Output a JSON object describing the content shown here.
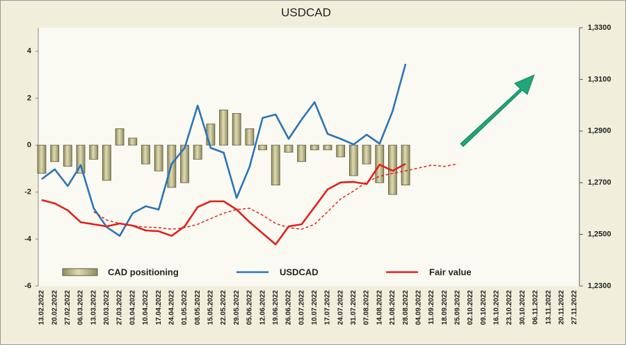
{
  "chart_data": {
    "type": "combo",
    "title": "USDCAD",
    "categories": [
      "13.02.2022",
      "20.02.2022",
      "27.02.2022",
      "06.03.2022",
      "13.03.2022",
      "20.03.2022",
      "27.03.2022",
      "03.04.2022",
      "10.04.2022",
      "17.04.2022",
      "24.04.2022",
      "01.05.2022",
      "08.05.2022",
      "15.05.2022",
      "22.05.2022",
      "29.05.2022",
      "05.06.2022",
      "12.06.2022",
      "19.06.2022",
      "26.06.2022",
      "03.07.2022",
      "10.07.2022",
      "17.07.2022",
      "24.07.2022",
      "31.07.2022",
      "07.08.2022",
      "14.08.2022",
      "21.08.2022",
      "28.08.2022",
      "04.09.2022",
      "11.09.2022",
      "18.09.2022",
      "25.09.2022",
      "02.10.2022",
      "09.10.2022",
      "16.10.2022",
      "23.10.2022",
      "30.10.2022",
      "06.11.2022",
      "13.11.2022",
      "20.11.2022",
      "27.11.2022"
    ],
    "ylim": [
      -6,
      5
    ],
    "yticks": [
      -6,
      -4,
      -2,
      0,
      2,
      4
    ],
    "y2lim": [
      1.23,
      1.33
    ],
    "y2ticks": [
      {
        "value": 1.23,
        "label": "1,2300"
      },
      {
        "value": 1.25,
        "label": "1,2500"
      },
      {
        "value": 1.27,
        "label": "1,2700"
      },
      {
        "value": 1.29,
        "label": "1,2900"
      },
      {
        "value": 1.31,
        "label": "1,3100"
      },
      {
        "value": 1.33,
        "label": "1,3300"
      }
    ],
    "series": [
      {
        "name": "CAD positioning",
        "type": "bar",
        "color": "#c8c296",
        "values": [
          -1.2,
          -0.7,
          -0.9,
          -1.2,
          -0.6,
          -1.5,
          0.7,
          0.3,
          -0.8,
          -1.1,
          -1.8,
          -1.6,
          -0.6,
          0.9,
          1.5,
          1.35,
          0.7,
          -0.2,
          -1.7,
          -0.3,
          -0.7,
          -0.2,
          -0.2,
          -0.5,
          -1.3,
          -0.8,
          -1.6,
          -2.1,
          -1.7,
          null,
          null,
          null,
          null,
          null,
          null,
          null,
          null,
          null,
          null,
          null,
          null,
          null
        ]
      },
      {
        "name": "USDCAD",
        "type": "line",
        "axis": "y2",
        "color": "#2a74b8",
        "values": [
          1.2714,
          1.2752,
          1.2687,
          1.2768,
          1.2601,
          1.2528,
          1.2494,
          1.2582,
          1.2609,
          1.2596,
          1.2773,
          1.2835,
          1.2999,
          1.2835,
          1.2816,
          1.2641,
          1.2762,
          1.2951,
          1.2964,
          1.287,
          1.2945,
          1.3012,
          1.2889,
          1.287,
          1.2848,
          1.2886,
          1.2851,
          1.2977,
          1.316,
          null,
          null,
          null,
          null,
          null,
          null,
          null,
          null,
          null,
          null,
          null,
          null,
          null
        ]
      },
      {
        "name": "Fair value",
        "type": "line",
        "axis": "y2",
        "color": "#e0201b",
        "values": [
          1.2633,
          1.262,
          1.2593,
          1.2547,
          1.2539,
          1.2531,
          1.2542,
          1.2534,
          1.2515,
          1.2512,
          1.2494,
          1.2531,
          1.2606,
          1.2628,
          1.2628,
          1.2596,
          1.2547,
          1.2504,
          1.2461,
          1.2531,
          1.2539,
          1.2606,
          1.2674,
          1.2701,
          1.2703,
          1.2695,
          1.277,
          1.2746,
          1.2773,
          null,
          null,
          null,
          null,
          null,
          null,
          null,
          null,
          null,
          null,
          null,
          null,
          null
        ]
      },
      {
        "type": "line",
        "dashed": true,
        "axis": "y2",
        "color": "#e0201b",
        "values": [
          null,
          null,
          null,
          null,
          1.2588,
          1.2555,
          1.2542,
          1.2534,
          1.2528,
          1.2526,
          1.252,
          1.2526,
          1.2539,
          1.2561,
          1.2582,
          1.2596,
          1.2601,
          1.2574,
          1.2542,
          1.2526,
          1.252,
          1.2539,
          1.2588,
          1.2637,
          1.2668,
          1.2703,
          1.2725,
          1.2736,
          1.2746,
          1.2757,
          1.2768,
          1.2763,
          1.2773,
          null,
          null,
          null,
          null,
          null,
          null,
          null,
          null,
          null
        ]
      }
    ]
  }
}
